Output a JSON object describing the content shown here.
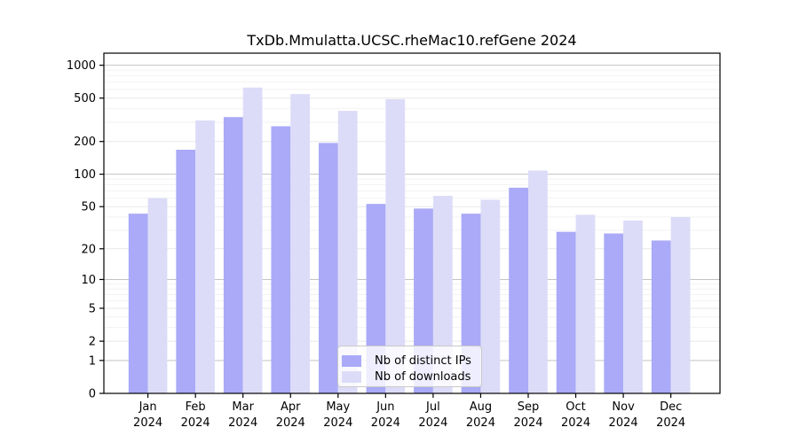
{
  "figure": {
    "title": "TxDb.Mmulatta.UCSC.rheMac10.refGene 2024"
  },
  "chart_data": {
    "type": "bar",
    "title": "TxDb.Mmulatta.UCSC.rheMac10.refGene 2024",
    "categories": [
      "Jan 2024",
      "Feb 2024",
      "Mar 2024",
      "Apr 2024",
      "May 2024",
      "Jun 2024",
      "Jul 2024",
      "Aug 2024",
      "Sep 2024",
      "Oct 2024",
      "Nov 2024",
      "Dec 2024"
    ],
    "series": [
      {
        "name": "Nb of distinct IPs",
        "color": "#aaaaf8",
        "values": [
          43,
          168,
          335,
          276,
          194,
          53,
          48,
          43,
          75,
          29,
          28,
          24
        ]
      },
      {
        "name": "Nb of downloads",
        "color": "#dcdcf8",
        "values": [
          60,
          312,
          625,
          545,
          382,
          489,
          63,
          58,
          108,
          42,
          37,
          40
        ]
      }
    ],
    "xlabel": "",
    "ylabel": "",
    "yscale": "log1p",
    "ylim": [
      0,
      1290
    ],
    "yticks": [
      0,
      1,
      2,
      5,
      10,
      20,
      50,
      100,
      200,
      500,
      1000
    ],
    "minor_grid_values": [
      3,
      4,
      6,
      7,
      8,
      9,
      30,
      40,
      60,
      70,
      80,
      90,
      300,
      400,
      600,
      700,
      800,
      900
    ],
    "grid": true,
    "legend_position": "lower center",
    "colors": {
      "major_grid": "#c3c3c3",
      "labeled_grid": "#e7e7e7",
      "faint_grid": "#f2f2f2",
      "axis": "#000000",
      "background": "#ffffff"
    }
  },
  "legend": {
    "items": [
      {
        "label": "Nb of distinct IPs"
      },
      {
        "label": "Nb of downloads"
      }
    ]
  }
}
